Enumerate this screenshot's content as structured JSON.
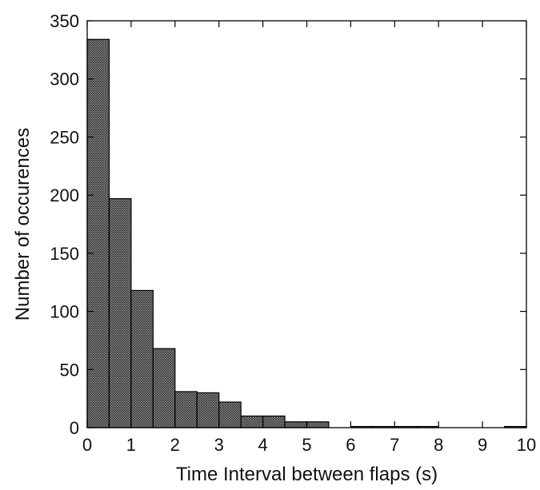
{
  "chart_data": {
    "type": "bar",
    "title": "",
    "xlabel": "Time Interval between flaps (s)",
    "ylabel": "Number of occurences",
    "xlim": [
      0,
      10
    ],
    "ylim": [
      0,
      350
    ],
    "xticks": [
      0,
      1,
      2,
      3,
      4,
      5,
      6,
      7,
      8,
      9,
      10
    ],
    "yticks": [
      0,
      50,
      100,
      150,
      200,
      250,
      300,
      350
    ],
    "bin_width": 0.5,
    "bins": [
      {
        "start": 0.0,
        "end": 0.5,
        "value": 334
      },
      {
        "start": 0.5,
        "end": 1.0,
        "value": 197
      },
      {
        "start": 1.0,
        "end": 1.5,
        "value": 118
      },
      {
        "start": 1.5,
        "end": 2.0,
        "value": 68
      },
      {
        "start": 2.0,
        "end": 2.5,
        "value": 31
      },
      {
        "start": 2.5,
        "end": 3.0,
        "value": 30
      },
      {
        "start": 3.0,
        "end": 3.5,
        "value": 22
      },
      {
        "start": 3.5,
        "end": 4.0,
        "value": 10
      },
      {
        "start": 4.0,
        "end": 4.5,
        "value": 10
      },
      {
        "start": 4.5,
        "end": 5.0,
        "value": 5
      },
      {
        "start": 5.0,
        "end": 5.5,
        "value": 5
      },
      {
        "start": 5.5,
        "end": 6.0,
        "value": 0
      },
      {
        "start": 6.0,
        "end": 6.5,
        "value": 1
      },
      {
        "start": 6.5,
        "end": 7.0,
        "value": 1
      },
      {
        "start": 7.0,
        "end": 7.5,
        "value": 1
      },
      {
        "start": 7.5,
        "end": 8.0,
        "value": 1
      },
      {
        "start": 8.0,
        "end": 8.5,
        "value": 0
      },
      {
        "start": 8.5,
        "end": 9.0,
        "value": 0
      },
      {
        "start": 9.0,
        "end": 9.5,
        "value": 0
      },
      {
        "start": 9.5,
        "end": 10.0,
        "value": 1
      }
    ],
    "grid": false,
    "legend": "none",
    "bar_fill": "#6e6e6e",
    "bar_stroke": "#000000"
  }
}
